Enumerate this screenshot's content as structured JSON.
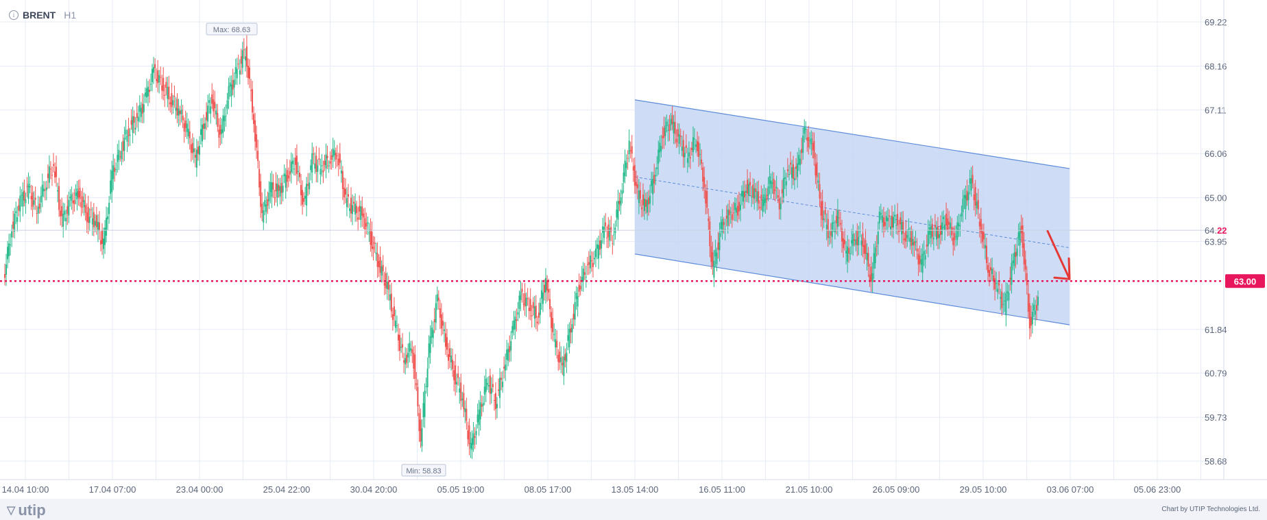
{
  "header": {
    "symbol": "BRENT",
    "timeframe": "H1"
  },
  "footer": {
    "logo_text": "utip",
    "credit": "Chart by UTIP Technologies Ltd."
  },
  "chart_data": {
    "type": "candlestick",
    "title": "",
    "y_ticks": [
      "69.22",
      "68.16",
      "67.11",
      "66.06",
      "65.00",
      "63.95",
      "61.84",
      "60.79",
      "59.73",
      "58.68"
    ],
    "x_ticks": [
      "14.04 10:00",
      "17.04 07:00",
      "23.04 00:00",
      "25.04 22:00",
      "30.04 20:00",
      "05.05 19:00",
      "08.05 17:00",
      "13.05 14:00",
      "16.05 11:00",
      "21.05 10:00",
      "26.05 09:00",
      "29.05 10:00",
      "03.06 07:00",
      "05.06 23:00"
    ],
    "current_price": {
      "main": "64.",
      "frac": "22",
      "value": 64.22
    },
    "support_level": {
      "label": "63.00",
      "value": 63.0,
      "color": "#e8175d"
    },
    "max_label": "Max: 68.63",
    "max_value": 68.63,
    "min_label": "Min: 58.83",
    "min_value": 58.83,
    "series": [
      {
        "name": "Close",
        "values": [
          63.05,
          64.25,
          64.9,
          65.2,
          64.7,
          65.35,
          65.8,
          64.4,
          64.9,
          65.1,
          64.6,
          64.45,
          63.85,
          65.55,
          66.1,
          66.65,
          66.9,
          67.35,
          68.05,
          67.7,
          67.4,
          67.1,
          66.6,
          65.9,
          66.8,
          67.4,
          66.45,
          67.5,
          68.05,
          68.55,
          66.9,
          64.55,
          65.2,
          65.15,
          65.55,
          65.9,
          64.8,
          65.9,
          65.7,
          65.95,
          66.1,
          64.95,
          64.7,
          64.6,
          64.05,
          63.4,
          62.85,
          61.9,
          61.1,
          61.45,
          59.2,
          61.35,
          62.55,
          61.5,
          60.8,
          60.2,
          58.95,
          59.8,
          60.65,
          60.1,
          60.9,
          61.75,
          62.65,
          62.4,
          62.15,
          63.05,
          61.55,
          60.9,
          61.9,
          62.9,
          63.35,
          63.6,
          64.25,
          64.05,
          65.15,
          66.3,
          65.05,
          64.75,
          65.5,
          66.55,
          66.8,
          66.35,
          65.95,
          66.45,
          65.35,
          63.25,
          64.25,
          64.6,
          64.75,
          65.25,
          65.1,
          64.8,
          65.45,
          64.9,
          65.7,
          65.55,
          66.55,
          66.2,
          64.75,
          64.1,
          64.55,
          63.6,
          64.05,
          64.0,
          63.0,
          64.5,
          64.4,
          64.45,
          64.15,
          64.0,
          63.35,
          64.2,
          64.15,
          64.5,
          63.95,
          64.8,
          65.4,
          64.45,
          63.35,
          62.9,
          62.35,
          63.45,
          64.3,
          62.0,
          62.55
        ]
      }
    ],
    "channel": {
      "upper": [
        67.35,
        65.7
      ],
      "lower": [
        63.65,
        61.95
      ],
      "mid": [
        65.5,
        63.8
      ],
      "start_index": 78,
      "end_index": 126
    },
    "ylim": [
      58.4,
      69.5
    ],
    "grid": true,
    "colors": {
      "up": "#26b98b",
      "down": "#ef5350",
      "channel_fill": "#c5d6f5",
      "channel_line": "#5b8bd9",
      "arrow": "#e53935",
      "grid": "#e6ebf5"
    }
  }
}
